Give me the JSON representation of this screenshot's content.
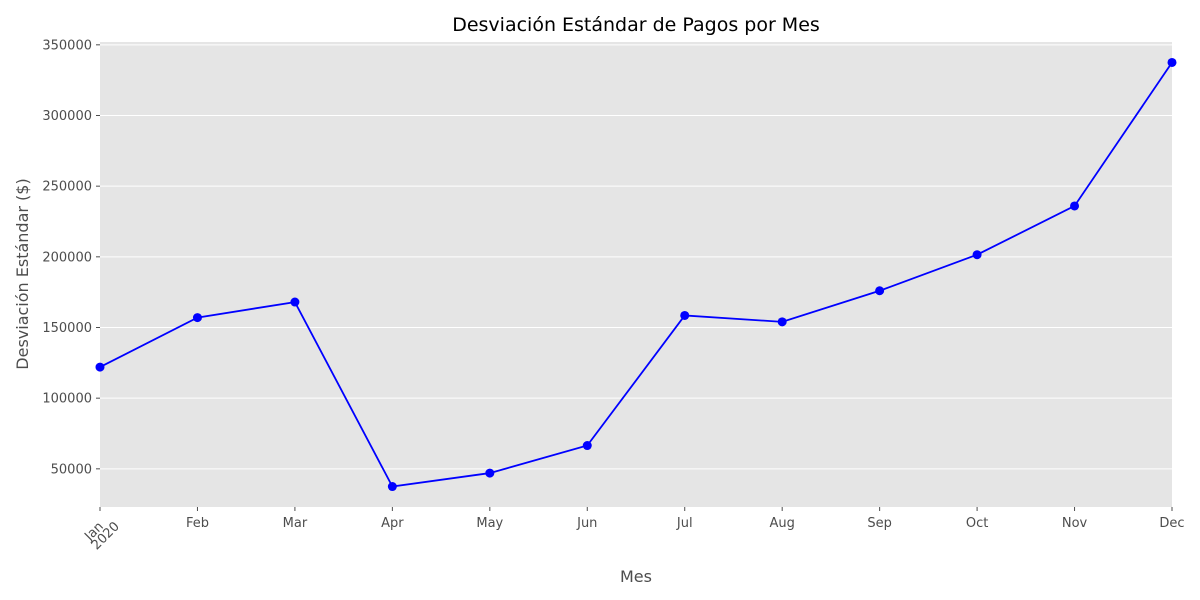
{
  "chart_data": {
    "type": "line",
    "title": "Desviación Estándar de Pagos por Mes",
    "xlabel": "Mes",
    "ylabel": "Desviación Estándar ($)",
    "year_label": "2020",
    "categories": [
      "Jan",
      "Feb",
      "Mar",
      "Apr",
      "May",
      "Jun",
      "Jul",
      "Aug",
      "Sep",
      "Oct",
      "Nov",
      "Dec"
    ],
    "series": [
      {
        "values": [
          122000,
          157000,
          168000,
          37500,
          47000,
          66500,
          158500,
          154000,
          176000,
          201500,
          236000,
          337500
        ]
      }
    ],
    "ylim": [
      23000,
      352000
    ],
    "yticks": [
      50000,
      100000,
      150000,
      200000,
      250000,
      300000,
      350000
    ],
    "grid": true,
    "line_color": "#0000ff",
    "background_color": "#e5e5e5",
    "grid_color": "#ffffff"
  }
}
